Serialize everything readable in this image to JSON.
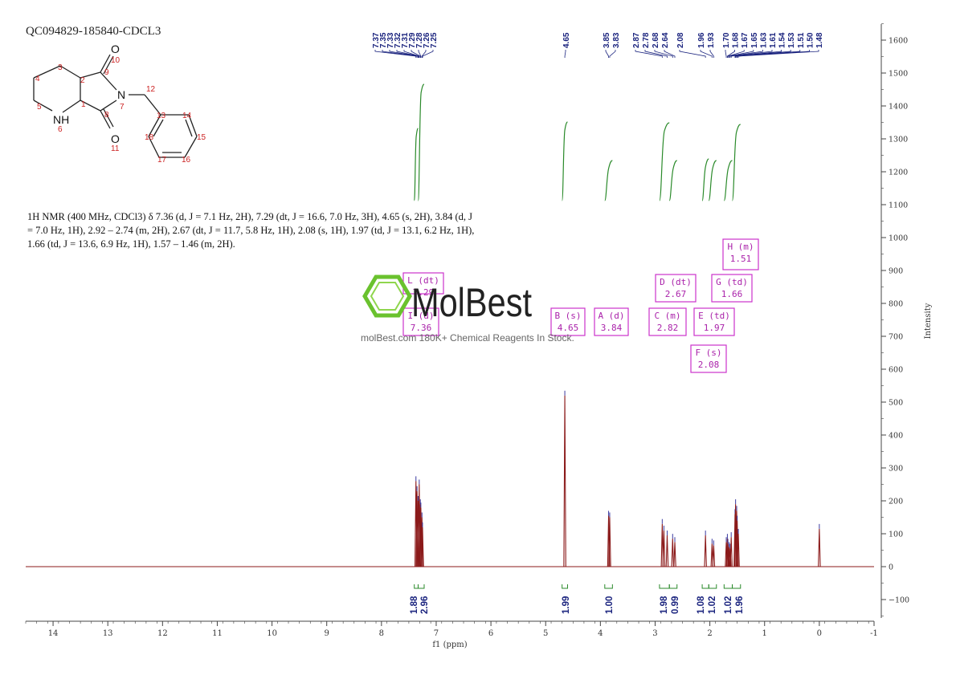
{
  "header": {
    "sample_id": "QC094829-185840-CDCL3"
  },
  "nmr_description": "1H NMR (400 MHz, CDCl3) δ 7.36 (d, J = 7.1 Hz, 2H), 7.29 (dt, J = 16.6, 7.0 Hz, 3H), 4.65 (s, 2H), 3.84 (d, J = 7.0 Hz, 1H), 2.92 – 2.74 (m, 2H), 2.67 (dt, J = 11.7, 5.8 Hz, 1H), 2.08 (s, 1H), 1.97 (td, J = 13.1, 6.2 Hz, 1H), 1.66 (td, J = 13.6, 6.9 Hz, 1H), 1.57 – 1.46 (m, 2H).",
  "watermark": {
    "brand": "MolBest",
    "tagline": "molBest.com 180K+ Chemical Reagents In Stock."
  },
  "molecule": {
    "atom_labels": [
      "O",
      "10",
      "3",
      "2",
      "9",
      "4",
      "N",
      "12",
      "7",
      "5",
      "1",
      "8",
      "14",
      "13",
      "NH",
      "O",
      "15",
      "6",
      "18",
      "11",
      "17",
      "16"
    ]
  },
  "colors": {
    "spectrum": "#8b1a1a",
    "peak_tick": "#3a3aa0",
    "integral": "#2a8a2a",
    "annotation_box": "#cc33cc",
    "annotation_text": "#aa22aa",
    "peak_label": "#1a237e",
    "integral_value": "#1a237e",
    "axis": "#444444",
    "watermark_green": "#6ac22e"
  },
  "chart_data": {
    "type": "line",
    "xlabel": "f1 (ppm)",
    "ylabel": "Intensity",
    "xlim": [
      14.5,
      -1.0
    ],
    "ylim": [
      -160,
      1650
    ],
    "x_ticks": [
      14,
      13,
      12,
      11,
      10,
      9,
      8,
      7,
      6,
      5,
      4,
      3,
      2,
      1,
      0,
      -1
    ],
    "y_ticks": [
      -100,
      0,
      100,
      200,
      300,
      400,
      500,
      600,
      700,
      800,
      900,
      1000,
      1100,
      1200,
      1300,
      1400,
      1500,
      1600
    ],
    "peaks": [
      {
        "ppm": 7.37,
        "height": 260
      },
      {
        "ppm": 7.35,
        "height": 230
      },
      {
        "ppm": 7.33,
        "height": 200
      },
      {
        "ppm": 7.31,
        "height": 250
      },
      {
        "ppm": 7.29,
        "height": 190
      },
      {
        "ppm": 7.28,
        "height": 180
      },
      {
        "ppm": 7.26,
        "height": 150
      },
      {
        "ppm": 7.25,
        "height": 120
      },
      {
        "ppm": 4.65,
        "height": 520
      },
      {
        "ppm": 3.85,
        "height": 155
      },
      {
        "ppm": 3.83,
        "height": 150
      },
      {
        "ppm": 2.87,
        "height": 130
      },
      {
        "ppm": 2.84,
        "height": 110
      },
      {
        "ppm": 2.78,
        "height": 95
      },
      {
        "ppm": 2.68,
        "height": 85
      },
      {
        "ppm": 2.64,
        "height": 75
      },
      {
        "ppm": 2.08,
        "height": 95
      },
      {
        "ppm": 1.96,
        "height": 70
      },
      {
        "ppm": 1.93,
        "height": 65
      },
      {
        "ppm": 1.7,
        "height": 75
      },
      {
        "ppm": 1.68,
        "height": 85
      },
      {
        "ppm": 1.67,
        "height": 70
      },
      {
        "ppm": 1.65,
        "height": 60
      },
      {
        "ppm": 1.63,
        "height": 55
      },
      {
        "ppm": 1.61,
        "height": 90
      },
      {
        "ppm": 1.54,
        "height": 160
      },
      {
        "ppm": 1.53,
        "height": 190
      },
      {
        "ppm": 1.51,
        "height": 170
      },
      {
        "ppm": 1.5,
        "height": 140
      },
      {
        "ppm": 1.48,
        "height": 100
      },
      {
        "ppm": 0.0,
        "height": 115
      }
    ],
    "peak_labels": [
      "7.37",
      "7.35",
      "7.33",
      "7.32",
      "7.31",
      "7.29",
      "7.28",
      "7.26",
      "7.25",
      "4.65",
      "3.85",
      "3.83",
      "2.87",
      "2.78",
      "2.68",
      "2.64",
      "2.08",
      "1.96",
      "1.93",
      "1.70",
      "1.68",
      "1.67",
      "1.65",
      "1.63",
      "1.61",
      "1.54",
      "1.53",
      "1.51",
      "1.50",
      "1.48"
    ],
    "integrals": [
      {
        "from": 7.4,
        "to": 7.33,
        "value": "1.88"
      },
      {
        "from": 7.33,
        "to": 7.22,
        "value": "2.96"
      },
      {
        "from": 4.7,
        "to": 4.6,
        "value": "1.99"
      },
      {
        "from": 3.92,
        "to": 3.78,
        "value": "1.00"
      },
      {
        "from": 2.92,
        "to": 2.74,
        "value": "1.98"
      },
      {
        "from": 2.74,
        "to": 2.6,
        "value": "0.99"
      },
      {
        "from": 2.14,
        "to": 2.02,
        "value": "1.08"
      },
      {
        "from": 2.02,
        "to": 1.88,
        "value": "1.02"
      },
      {
        "from": 1.74,
        "to": 1.59,
        "value": "1.02"
      },
      {
        "from": 1.59,
        "to": 1.44,
        "value": "1.96"
      }
    ],
    "multiplets": [
      {
        "letter": "L",
        "type": "dt",
        "shift": "7.29"
      },
      {
        "letter": "I",
        "type": "d",
        "shift": "7.36"
      },
      {
        "letter": "B",
        "type": "s",
        "shift": "4.65"
      },
      {
        "letter": "A",
        "type": "d",
        "shift": "3.84"
      },
      {
        "letter": "C",
        "type": "m",
        "shift": "2.82"
      },
      {
        "letter": "D",
        "type": "dt",
        "shift": "2.67"
      },
      {
        "letter": "F",
        "type": "s",
        "shift": "2.08"
      },
      {
        "letter": "E",
        "type": "td",
        "shift": "1.97"
      },
      {
        "letter": "G",
        "type": "td",
        "shift": "1.66"
      },
      {
        "letter": "H",
        "type": "m",
        "shift": "1.51"
      }
    ]
  }
}
